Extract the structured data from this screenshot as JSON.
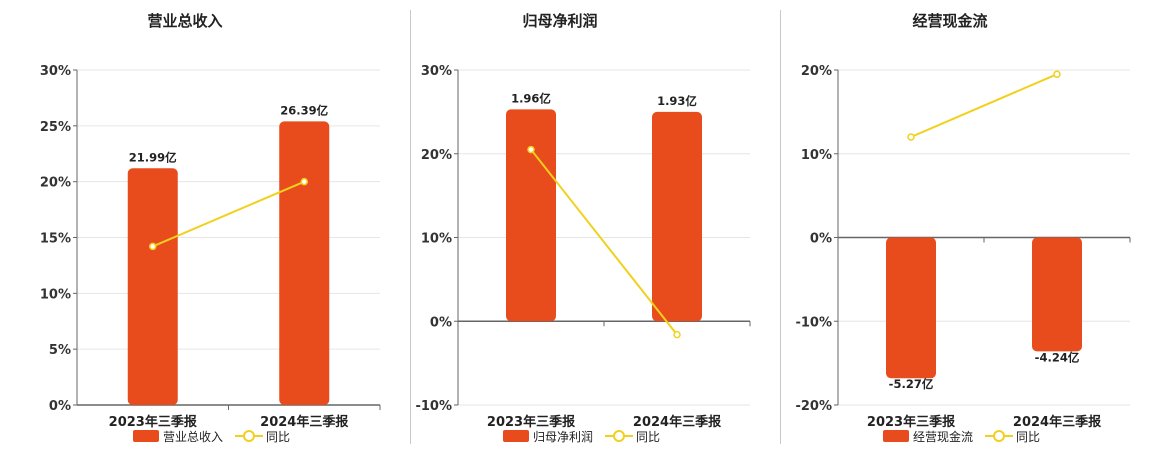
{
  "colors": {
    "bar": "#E84B1C",
    "line": "#F2D01E",
    "axis": "#666666",
    "grid": "#E6E6E6"
  },
  "chart_data": [
    {
      "type": "bar",
      "title": "营业总收入",
      "categories": [
        "2023年三季报",
        "2024年三季报"
      ],
      "bar_values": [
        21.2,
        25.4
      ],
      "bar_labels": [
        "21.99亿",
        "26.39亿"
      ],
      "line_values": [
        14.2,
        20.0
      ],
      "yticks": [
        "30%",
        "25%",
        "20%",
        "15%",
        "10%",
        "5%",
        "0%"
      ],
      "ylim": [
        0,
        30
      ],
      "legend": {
        "bar": "营业总收入",
        "line": "同比"
      }
    },
    {
      "type": "bar",
      "title": "归母净利润",
      "categories": [
        "2023年三季报",
        "2024年三季报"
      ],
      "bar_values": [
        25.3,
        25.0
      ],
      "bar_labels": [
        "1.96亿",
        "1.93亿"
      ],
      "line_values": [
        20.5,
        -1.6
      ],
      "yticks": [
        "30%",
        "20%",
        "10%",
        "0%",
        "-10%"
      ],
      "ylim": [
        -10,
        30
      ],
      "legend": {
        "bar": "归母净利润",
        "line": "同比"
      }
    },
    {
      "type": "bar",
      "title": "经营现金流",
      "categories": [
        "2023年三季报",
        "2024年三季报"
      ],
      "bar_values": [
        -16.8,
        -13.6
      ],
      "bar_labels": [
        "-5.27亿",
        "-4.24亿"
      ],
      "line_values": [
        12.0,
        19.5
      ],
      "yticks": [
        "20%",
        "10%",
        "0%",
        "-10%",
        "-20%"
      ],
      "ylim": [
        -20,
        20
      ],
      "legend": {
        "bar": "经营现金流",
        "line": "同比"
      }
    }
  ]
}
